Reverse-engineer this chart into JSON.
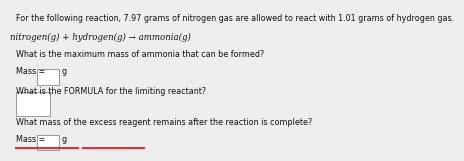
{
  "line1": "For the following reaction, 7.97 grams of nitrogen gas are allowed to react with 1.01 grams of hydrogen gas.",
  "line2": "nitrogen(g) + hydrogen(g) → ammonia(g)",
  "q1": "What is the maximum mass of ammonia that can be formed?",
  "mass_label1": "Mass =",
  "g_label1": "g",
  "q2": "What is the FORMULA for the limiting reactant?",
  "q3": "What mass of the excess reagent remains after the reaction is complete?",
  "mass_label2": "Mass =",
  "g_label2": "g",
  "bg_color": "#eeeeee",
  "box_color": "#ffffff",
  "box_edge_color": "#999999",
  "text_color": "#111111",
  "bottom_line_color": "#dd3333",
  "font_size_body": 5.8,
  "font_size_equation": 6.2
}
